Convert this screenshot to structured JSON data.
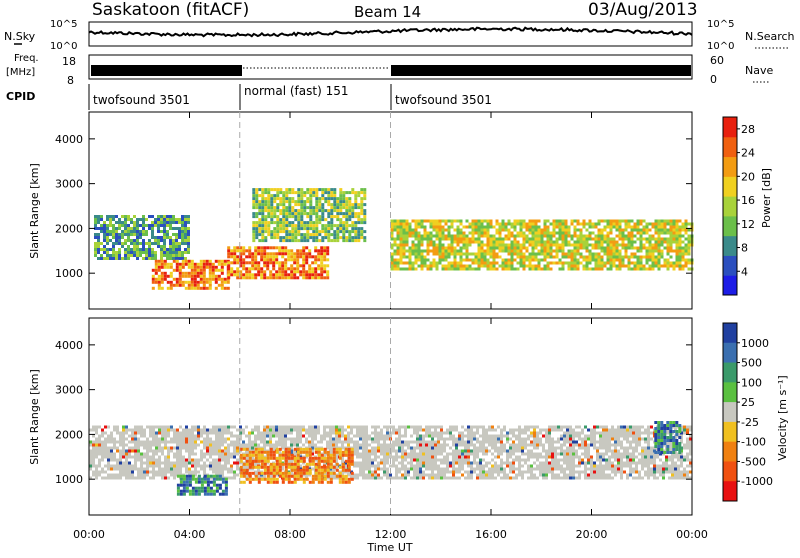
{
  "header": {
    "site": "Saskatoon (fitACF)",
    "beam": "Beam 14",
    "date": "03/Aug/2013"
  },
  "noise_panel": {
    "left_label": "N.Sky",
    "right_label": "N.Search",
    "left_ticks": [
      "10^5",
      "10^0"
    ],
    "right_ticks": [
      "10^5",
      "10^0"
    ]
  },
  "freq_panel": {
    "left_label_1": "Freq.",
    "left_label_2": "[MHz]",
    "left_ticks": [
      "18",
      "8"
    ],
    "right_label": "Nave",
    "right_ticks": [
      "60",
      "0"
    ]
  },
  "cpid": {
    "label": "CPID",
    "segments": [
      {
        "name": "twofsound 3501",
        "start_hour": 0,
        "end_hour": 6
      },
      {
        "name": "normal (fast) 151",
        "start_hour": 6,
        "end_hour": 12
      },
      {
        "name": "twofsound 3501",
        "start_hour": 12,
        "end_hour": 24
      }
    ]
  },
  "chart_data": [
    {
      "type": "heatmap",
      "parameter": "Power",
      "xlabel": "Time UT",
      "ylabel": "Slant Range [km]",
      "xlim_hours": [
        0,
        24
      ],
      "ylim_km": [
        200,
        4600
      ],
      "x_ticks": [
        "00:00",
        "04:00",
        "08:00",
        "12:00",
        "16:00",
        "20:00",
        "00:00"
      ],
      "y_ticks": [
        1000,
        2000,
        3000,
        4000
      ],
      "colorbar": {
        "label": "Power [dB]",
        "ticks": [
          4,
          8,
          12,
          16,
          20,
          24,
          28
        ],
        "range": [
          0,
          30
        ],
        "colors": [
          "#1d1de6",
          "#2b4fbf",
          "#3a8a8a",
          "#6bbf4a",
          "#a8d23a",
          "#f0d020",
          "#f39c12",
          "#f06010",
          "#e8200e"
        ]
      },
      "echo_regions": [
        {
          "t0": 0.2,
          "t1": 4.0,
          "r0": 1350,
          "r1": 2300,
          "level_db": 12
        },
        {
          "t0": 2.5,
          "t1": 5.5,
          "r0": 650,
          "r1": 1300,
          "level_db": 26
        },
        {
          "t0": 5.5,
          "t1": 9.5,
          "r0": 900,
          "r1": 1600,
          "level_db": 26
        },
        {
          "t0": 6.5,
          "t1": 11.0,
          "r0": 1700,
          "r1": 2900,
          "level_db": 14
        },
        {
          "t0": 12.0,
          "t1": 24.0,
          "r0": 1100,
          "r1": 2200,
          "level_db": 18
        }
      ]
    },
    {
      "type": "heatmap",
      "parameter": "Velocity",
      "xlabel": "Time UT",
      "ylabel": "Slant Range [km]",
      "xlim_hours": [
        0,
        24
      ],
      "ylim_km": [
        200,
        4600
      ],
      "x_ticks": [
        "00:00",
        "04:00",
        "08:00",
        "12:00",
        "16:00",
        "20:00",
        "00:00"
      ],
      "y_ticks": [
        1000,
        2000,
        3000,
        4000
      ],
      "colorbar": {
        "label": "Velocity [m s⁻¹]",
        "ticks": [
          1000,
          500,
          100,
          25,
          -25,
          -100,
          -500,
          -1000
        ],
        "colors": [
          "#2040a0",
          "#3a6fb0",
          "#3a9a6a",
          "#5ac040",
          "#c8c8c0",
          "#f0c020",
          "#f08010",
          "#f05010",
          "#e81010"
        ]
      },
      "echo_regions": [
        {
          "t0": 0.0,
          "t1": 24.0,
          "r0": 1000,
          "r1": 2200,
          "velocity": 0
        },
        {
          "t0": 3.5,
          "t1": 5.5,
          "r0": 650,
          "r1": 1100,
          "velocity": 100
        },
        {
          "t0": 6.0,
          "t1": 10.5,
          "r0": 900,
          "r1": 1700,
          "velocity": -300
        },
        {
          "t0": 22.5,
          "t1": 23.5,
          "r0": 1600,
          "r1": 2300,
          "velocity": 500
        }
      ]
    }
  ]
}
